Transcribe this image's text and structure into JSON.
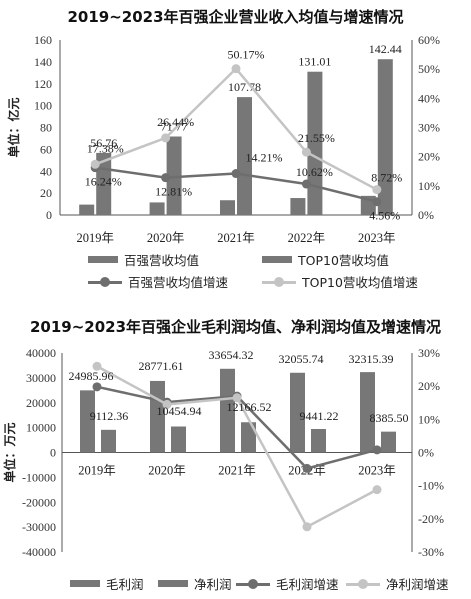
{
  "chart_data": [
    {
      "type": "bar",
      "title": "2019~2023年百强企业营业收入均值与增速情况",
      "ylabel": "单位：亿元",
      "categories": [
        "2019年",
        "2020年",
        "2021年",
        "2022年",
        "2023年"
      ],
      "ylim": [
        0,
        160
      ],
      "yticks": [
        "0",
        "20",
        "40",
        "60",
        "80",
        "100",
        "120",
        "140",
        "160"
      ],
      "y2lim": [
        0,
        60
      ],
      "y2ticks": [
        "0%",
        "10%",
        "20%",
        "30%",
        "40%",
        "50%",
        "60%"
      ],
      "series": [
        {
          "name": "百强营收均值",
          "kind": "bar",
          "axis": "left",
          "values": [
            9.5,
            11.5,
            13.5,
            15.5,
            17.5
          ],
          "color": "#777777"
        },
        {
          "name": "TOP10营收均值",
          "kind": "bar",
          "axis": "left",
          "values": [
            56.76,
            71.77,
            107.78,
            131.01,
            142.44
          ],
          "labels": [
            "56.76",
            "71.77",
            "107.78",
            "131.01",
            "142.44"
          ],
          "color": "#777777"
        },
        {
          "name": "百强营收均值增速",
          "kind": "line",
          "axis": "right",
          "values": [
            16.24,
            12.81,
            14.21,
            10.62,
            4.56
          ],
          "labels": [
            "16.24%",
            "12.81%",
            "14.21%",
            "10.62%",
            "4.56%"
          ],
          "color": "#6e6e6e"
        },
        {
          "name": "TOP10营收均值增速",
          "kind": "line",
          "axis": "right",
          "values": [
            17.38,
            26.44,
            50.17,
            21.55,
            8.72
          ],
          "labels": [
            "17.38%",
            "26.44%",
            "50.17%",
            "21.55%",
            "8.72%"
          ],
          "color": "#c4c4c4"
        }
      ],
      "grid": false,
      "legend": "bottom"
    },
    {
      "type": "bar",
      "title": "2019~2023年百强企业毛利润均值、净利润均值及增速情况",
      "ylabel": "单位：万元",
      "categories": [
        "2019年",
        "2020年",
        "2021年",
        "2022年",
        "2023年"
      ],
      "ylim": [
        -40000,
        40000
      ],
      "yticks": [
        "-40000",
        "-30000",
        "-20000",
        "-10000",
        "0",
        "10000",
        "20000",
        "30000",
        "40000"
      ],
      "y2lim": [
        -30,
        30
      ],
      "y2ticks": [
        "-30%",
        "-20%",
        "-10%",
        "0%",
        "10%",
        "20%",
        "30%"
      ],
      "series": [
        {
          "name": "毛利润",
          "kind": "bar",
          "axis": "left",
          "values": [
            24985.96,
            28771.61,
            33654.32,
            32055.74,
            32315.39
          ],
          "labels": [
            "24985.96",
            "28771.61",
            "33654.32",
            "32055.74",
            "32315.39"
          ],
          "color": "#777777"
        },
        {
          "name": "净利润",
          "kind": "bar",
          "axis": "left",
          "values": [
            9112.36,
            10454.94,
            12166.52,
            9441.22,
            8385.5
          ],
          "labels": [
            "9112.36",
            "10454.94",
            "12166.52",
            "9441.22",
            "8385.50"
          ],
          "color": "#777777"
        },
        {
          "name": "毛利润增速",
          "kind": "line",
          "axis": "right",
          "values": [
            19.8,
            15.2,
            17.0,
            -4.8,
            0.8
          ],
          "color": "#6e6e6e"
        },
        {
          "name": "净利润增速",
          "kind": "line",
          "axis": "right",
          "values": [
            26.0,
            14.5,
            16.5,
            -22.4,
            -11.2
          ],
          "color": "#c4c4c4"
        }
      ],
      "grid": false,
      "legend": "bottom"
    }
  ]
}
